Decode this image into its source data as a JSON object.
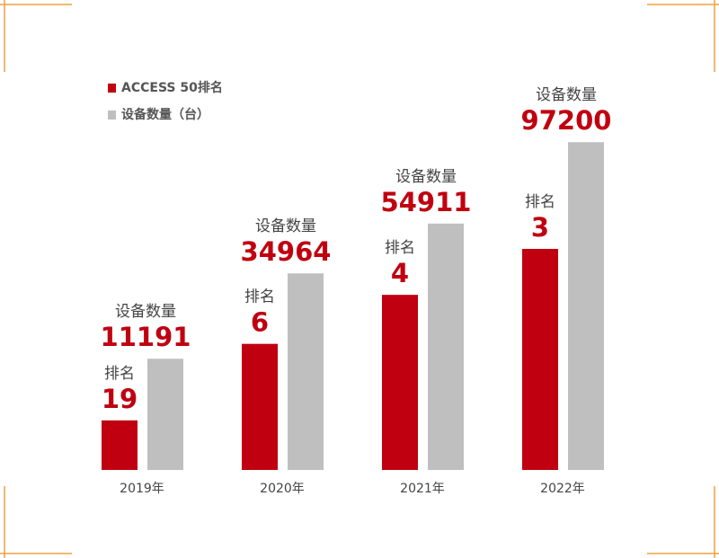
{
  "chart_data": {
    "type": "bar",
    "categories": [
      "2019年",
      "2020年",
      "2021年",
      "2022年"
    ],
    "series": [
      {
        "name": "ACCESS 50排名",
        "bar_label": "排名",
        "color": "#c00010",
        "values": [
          19,
          6,
          4,
          3
        ]
      },
      {
        "name": "设备数量（台）",
        "bar_label": "设备数量",
        "color": "#bfbfbf",
        "values": [
          11191,
          34964,
          54911,
          97200
        ]
      }
    ],
    "legend": "top-left"
  }
}
